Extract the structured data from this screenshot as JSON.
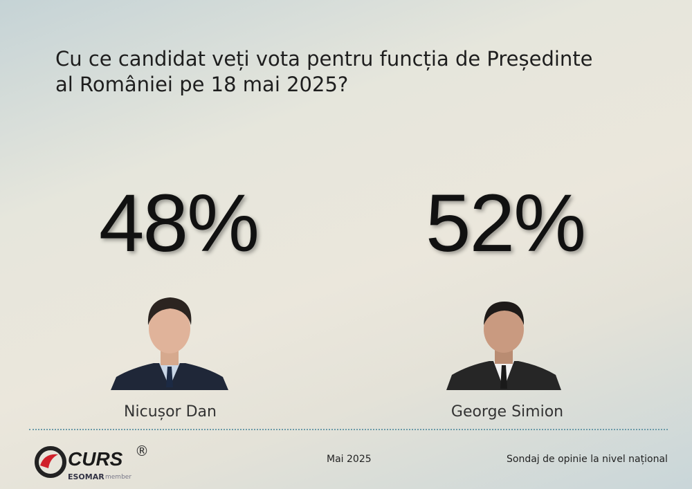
{
  "header": {
    "title_lines": [
      "Cu ce candidat veți vota pentru funcția de Președinte",
      "al României pe 18 mai 2025?"
    ]
  },
  "candidates": [
    {
      "name": "Nicușor Dan",
      "percent": "48%"
    },
    {
      "name": "George Simion",
      "percent": "52%"
    }
  ],
  "footer": {
    "logo": "CURS",
    "registered": "®",
    "esomar": "ESOMAR",
    "member": "member",
    "date": "Mai 2025",
    "note": "Sondaj de opinie la nivel național"
  }
}
